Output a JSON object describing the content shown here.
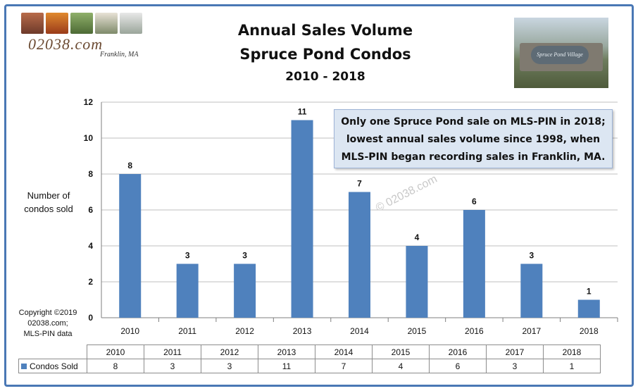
{
  "header": {
    "title_line1": "Annual Sales Volume",
    "title_line2": "Spruce Pond Condos",
    "title_line3": "2010 - 2018"
  },
  "logo": {
    "site": "02038.com",
    "town": "Franklin, MA"
  },
  "photo": {
    "sign_text": "Spruce Pond Village"
  },
  "axis": {
    "ylabel_line1": "Number  of",
    "ylabel_line2": "condos sold"
  },
  "copyright": {
    "line1": "Copyright ©2019",
    "line2": "02038.com;",
    "line3": "MLS-PIN data"
  },
  "callout": {
    "line1": "Only one Spruce Pond sale on MLS-PIN in 2018;",
    "line2": "lowest annual sales volume since 1998, when",
    "line3": "MLS-PIN began recording sales in Franklin, MA."
  },
  "watermark": "© 02038.com",
  "colors": {
    "bar": "#4f81bd",
    "frame": "#4a78b5",
    "callout_bg": "#dce6f2"
  },
  "chart_data": {
    "type": "bar",
    "title": "Annual Sales Volume Spruce Pond Condos 2010 - 2018",
    "categories": [
      "2010",
      "2011",
      "2012",
      "2013",
      "2014",
      "2015",
      "2016",
      "2017",
      "2018"
    ],
    "series": [
      {
        "name": "Condos Sold",
        "values": [
          8,
          3,
          3,
          11,
          7,
          4,
          6,
          3,
          1
        ]
      }
    ],
    "ylabel": "Number  of condos sold",
    "ylim": [
      0,
      12
    ],
    "yticks": [
      0,
      2,
      4,
      6,
      8,
      10,
      12
    ],
    "grid": true,
    "data_labels": true,
    "data_table": true
  }
}
